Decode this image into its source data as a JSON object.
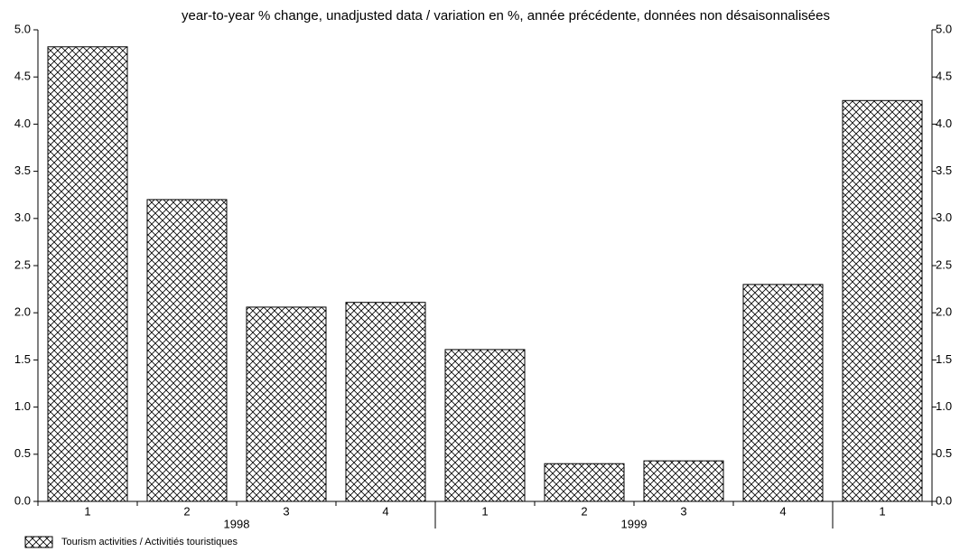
{
  "chart_data": {
    "type": "bar",
    "title": "year-to-year % change, unadjusted data / variation en %, année précédente, données non désaisonnalisées",
    "categories": [
      "1",
      "2",
      "3",
      "4",
      "1",
      "2",
      "3",
      "4",
      "1"
    ],
    "groups": [
      "1998",
      "1999"
    ],
    "series": [
      {
        "name": "Tourism activities / Activitiés touristiques",
        "color": "#000000",
        "values": [
          4.82,
          3.2,
          2.06,
          2.11,
          1.61,
          0.4,
          0.43,
          2.3,
          4.25
        ]
      }
    ],
    "ylim": [
      0,
      5
    ],
    "yticks": [
      {
        "value": 0,
        "label": "0.0"
      },
      {
        "value": 0.5,
        "label": "0.5"
      },
      {
        "value": 1,
        "label": "1.0"
      },
      {
        "value": 1.5,
        "label": "1.5"
      },
      {
        "value": 2,
        "label": "2.0"
      },
      {
        "value": 2.5,
        "label": "2.5"
      },
      {
        "value": 3,
        "label": "3.0"
      },
      {
        "value": 3.5,
        "label": "3.5"
      },
      {
        "value": 4,
        "label": "4.0"
      },
      {
        "value": 4.5,
        "label": "4.5"
      },
      {
        "value": 5,
        "label": "5.0"
      }
    ],
    "y2lim": [
      0,
      5
    ],
    "y2ticks": [
      {
        "value": 0,
        "label": "0.0"
      },
      {
        "value": 0.5,
        "label": "0.5"
      },
      {
        "value": 1,
        "label": "1.0"
      },
      {
        "value": 1.5,
        "label": "1.5"
      },
      {
        "value": 2,
        "label": "2.0"
      },
      {
        "value": 2.5,
        "label": "2.5"
      },
      {
        "value": 3,
        "label": "3.0"
      },
      {
        "value": 3.5,
        "label": "3.5"
      },
      {
        "value": 4,
        "label": "4.0"
      },
      {
        "value": 4.5,
        "label": "4.5"
      },
      {
        "value": 5,
        "label": "5.0"
      }
    ],
    "grid": false
  }
}
